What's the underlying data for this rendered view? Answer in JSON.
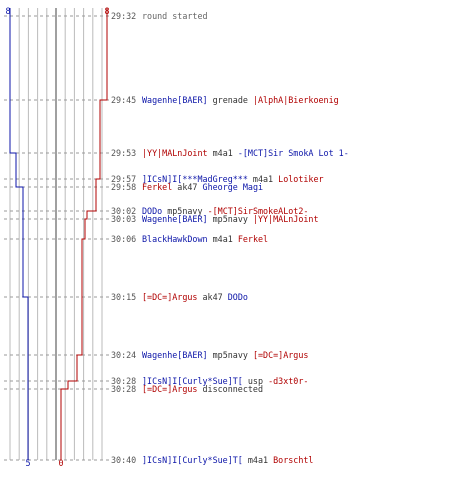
{
  "scores": {
    "blue_start": "8",
    "red_start": "8",
    "blue_end": "5",
    "red_end": "0"
  },
  "colors": {
    "blue_team": "#0c15a8",
    "red_team": "#b00000",
    "grid": "#bbbbbb",
    "center": "#888888"
  },
  "events": [
    {
      "time": "29:32",
      "type": "note",
      "text": "round started"
    },
    {
      "time": "29:45",
      "type": "kill",
      "killer": "Wagenhe[BAER]",
      "killer_team": "blue",
      "weapon": "grenade",
      "victim": "|AlphA|Bierkoenig",
      "victim_team": "red"
    },
    {
      "time": "29:53",
      "type": "kill",
      "killer": "|YY|MALnJoint",
      "killer_team": "red",
      "weapon": "m4a1",
      "victim": "-[MCT]Sir SmokA Lot 1-",
      "victim_team": "blue"
    },
    {
      "time": "29:57",
      "type": "kill",
      "killer": "]ICsN]I[***MadGreg***",
      "killer_team": "blue",
      "weapon": "m4a1",
      "victim": "Lolotiker",
      "victim_team": "red"
    },
    {
      "time": "29:58",
      "type": "kill",
      "killer": "Ferkel",
      "killer_team": "red",
      "weapon": "ak47",
      "victim": "Gheorge Magi",
      "victim_team": "blue"
    },
    {
      "time": "30:02",
      "type": "kill",
      "killer": "DODo",
      "killer_team": "blue",
      "weapon": "mp5navy",
      "victim": "-[MCT]SirSmokeALot2-",
      "victim_team": "red"
    },
    {
      "time": "30:03",
      "type": "kill",
      "killer": "Wagenhe[BAER]",
      "killer_team": "blue",
      "weapon": "mp5navy",
      "victim": "|YY|MALnJoint",
      "victim_team": "red"
    },
    {
      "time": "30:06",
      "type": "kill",
      "killer": "BlackHawkDown",
      "killer_team": "blue",
      "weapon": "m4a1",
      "victim": "Ferkel",
      "victim_team": "red"
    },
    {
      "time": "30:15",
      "type": "kill",
      "killer": "[=DC=]Argus",
      "killer_team": "red",
      "weapon": "ak47",
      "victim": "DODo",
      "victim_team": "blue"
    },
    {
      "time": "30:24",
      "type": "kill",
      "killer": "Wagenhe[BAER]",
      "killer_team": "blue",
      "weapon": "mp5navy",
      "victim": "[=DC=]Argus",
      "victim_team": "red"
    },
    {
      "time": "30:28",
      "type": "kill",
      "killer": "]ICsN]I[Curly*Sue]T[",
      "killer_team": "blue",
      "weapon": "usp",
      "victim": "-d3xt0r-",
      "victim_team": "red"
    },
    {
      "time": "30:28",
      "type": "disconnect",
      "player": "[=DC=]Argus",
      "player_team": "red",
      "text": "disconnected"
    },
    {
      "time": "30:40",
      "type": "kill",
      "killer": "]ICsN]I[Curly*Sue]T[",
      "killer_team": "blue",
      "weapon": "m4a1",
      "victim": "Borschtl",
      "victim_team": "red"
    }
  ]
}
